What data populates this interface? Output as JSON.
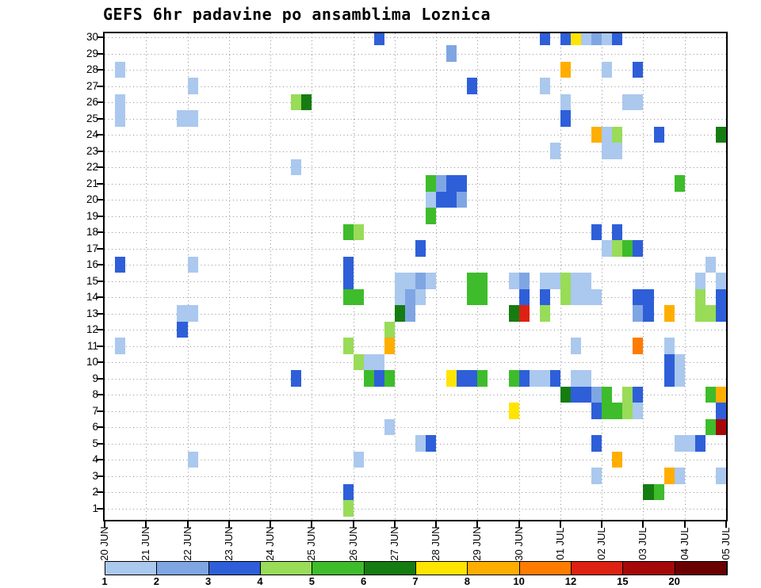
{
  "title": "GEFS 6hr padavine po ansamblima Loznica",
  "chart_data": {
    "type": "heatmap",
    "title": "GEFS 6hr padavine po ansamblima Loznica",
    "x_tick_labels": [
      "20 JUN",
      "21 JUN",
      "22 JUN",
      "23 JUN",
      "24 JUN",
      "25 JUN",
      "26 JUN",
      "27 JUN",
      "28 JUN",
      "29 JUN",
      "30 JUN",
      "01 JUL",
      "02 JUL",
      "03 JUL",
      "04 JUL",
      "05 JUL"
    ],
    "y_tick_labels": [
      "30",
      "29",
      "28",
      "27",
      "26",
      "25",
      "24",
      "23",
      "22",
      "21",
      "20",
      "19",
      "18",
      "17",
      "16",
      "15",
      "14",
      "13",
      "12",
      "11",
      "10",
      "9",
      "8",
      "7",
      "6",
      "5",
      "4",
      "3",
      "2",
      "1"
    ],
    "slots_per_day": 4,
    "grid": "dotted",
    "colorbar": {
      "labels": [
        "1",
        "2",
        "3",
        "4",
        "5",
        "6",
        "7",
        "8",
        "10",
        "12",
        "15",
        "20"
      ],
      "thresholds": [
        1,
        2,
        3,
        4,
        5,
        6,
        7,
        8,
        10,
        12,
        15,
        20
      ],
      "colors": [
        "#abc8ee",
        "#7fa6e3",
        "#2e5fd9",
        "#98dc58",
        "#3ebc2b",
        "#157c12",
        "#ffe400",
        "#ffae00",
        "#ff7c00",
        "#dd2112",
        "#a50808",
        "#6b0000"
      ]
    },
    "cell_format": [
      "member",
      "day_index",
      "slot_6hr",
      "value_mm"
    ],
    "cells": [
      [
        30,
        6,
        2,
        3.5
      ],
      [
        30,
        10,
        2,
        3.5
      ],
      [
        30,
        11,
        0,
        3.5
      ],
      [
        30,
        11,
        1,
        7.5
      ],
      [
        30,
        11,
        2,
        1.5
      ],
      [
        30,
        11,
        3,
        2.5
      ],
      [
        30,
        12,
        0,
        1.5
      ],
      [
        30,
        12,
        1,
        3.5
      ],
      [
        29,
        8,
        1,
        2.5
      ],
      [
        28,
        0,
        1,
        1.5
      ],
      [
        28,
        11,
        0,
        8.5
      ],
      [
        28,
        12,
        0,
        1.5
      ],
      [
        28,
        12,
        3,
        3.5
      ],
      [
        27,
        2,
        0,
        1.5
      ],
      [
        27,
        8,
        3,
        3.5
      ],
      [
        27,
        10,
        2,
        1.5
      ],
      [
        26,
        0,
        1,
        1.5
      ],
      [
        26,
        4,
        2,
        4.5
      ],
      [
        26,
        4,
        3,
        6.5
      ],
      [
        26,
        11,
        0,
        1.5
      ],
      [
        26,
        12,
        2,
        1.5
      ],
      [
        26,
        12,
        3,
        1.5
      ],
      [
        25,
        0,
        1,
        1.5
      ],
      [
        25,
        1,
        3,
        1.5
      ],
      [
        25,
        2,
        0,
        1.5
      ],
      [
        25,
        11,
        0,
        3.5
      ],
      [
        24,
        11,
        3,
        8.5
      ],
      [
        24,
        12,
        0,
        1.5
      ],
      [
        24,
        12,
        1,
        4.5
      ],
      [
        24,
        13,
        1,
        3.5
      ],
      [
        24,
        14,
        3,
        6.5
      ],
      [
        23,
        10,
        3,
        1.5
      ],
      [
        23,
        12,
        0,
        1.5
      ],
      [
        23,
        12,
        1,
        1.5
      ],
      [
        22,
        4,
        2,
        1.5
      ],
      [
        21,
        7,
        3,
        5.5
      ],
      [
        21,
        8,
        0,
        2.5
      ],
      [
        21,
        8,
        1,
        3.5
      ],
      [
        21,
        8,
        2,
        3.5
      ],
      [
        21,
        13,
        3,
        5.5
      ],
      [
        20,
        7,
        3,
        1.5
      ],
      [
        20,
        8,
        0,
        3.5
      ],
      [
        20,
        8,
        1,
        3.5
      ],
      [
        20,
        8,
        2,
        2.5
      ],
      [
        19,
        7,
        3,
        5.5
      ],
      [
        18,
        5,
        3,
        5.5
      ],
      [
        18,
        6,
        0,
        4.5
      ],
      [
        18,
        11,
        3,
        3.5
      ],
      [
        18,
        12,
        1,
        3.5
      ],
      [
        17,
        7,
        2,
        3.5
      ],
      [
        17,
        12,
        0,
        1.5
      ],
      [
        17,
        12,
        1,
        4.5
      ],
      [
        17,
        12,
        2,
        5.5
      ],
      [
        17,
        12,
        3,
        3.5
      ],
      [
        16,
        0,
        1,
        3.5
      ],
      [
        16,
        2,
        0,
        1.5
      ],
      [
        16,
        5,
        3,
        3.5
      ],
      [
        16,
        14,
        2,
        1.5
      ],
      [
        15,
        5,
        3,
        3.5
      ],
      [
        15,
        7,
        0,
        1.5
      ],
      [
        15,
        7,
        1,
        1.5
      ],
      [
        15,
        7,
        2,
        2.5
      ],
      [
        15,
        7,
        3,
        1.5
      ],
      [
        15,
        8,
        3,
        5.5
      ],
      [
        15,
        9,
        0,
        5.5
      ],
      [
        15,
        9,
        3,
        1.5
      ],
      [
        15,
        10,
        0,
        2.5
      ],
      [
        15,
        10,
        2,
        1.5
      ],
      [
        15,
        10,
        3,
        1.5
      ],
      [
        15,
        11,
        0,
        4.5
      ],
      [
        15,
        11,
        1,
        1.5
      ],
      [
        15,
        11,
        2,
        1.5
      ],
      [
        15,
        14,
        1,
        1.5
      ],
      [
        15,
        14,
        3,
        1.5
      ],
      [
        14,
        5,
        3,
        5.5
      ],
      [
        14,
        6,
        0,
        5.5
      ],
      [
        14,
        7,
        0,
        1.5
      ],
      [
        14,
        7,
        1,
        2.5
      ],
      [
        14,
        7,
        2,
        1.5
      ],
      [
        14,
        8,
        3,
        5.5
      ],
      [
        14,
        9,
        0,
        5.5
      ],
      [
        14,
        10,
        0,
        3.5
      ],
      [
        14,
        10,
        2,
        3.5
      ],
      [
        14,
        11,
        0,
        4.5
      ],
      [
        14,
        11,
        1,
        1.5
      ],
      [
        14,
        11,
        2,
        1.5
      ],
      [
        14,
        11,
        3,
        1.5
      ],
      [
        14,
        12,
        3,
        3.5
      ],
      [
        14,
        13,
        0,
        3.5
      ],
      [
        14,
        14,
        1,
        4.5
      ],
      [
        14,
        14,
        3,
        3.5
      ],
      [
        13,
        1,
        3,
        1.5
      ],
      [
        13,
        2,
        0,
        1.5
      ],
      [
        13,
        7,
        0,
        6.5
      ],
      [
        13,
        7,
        1,
        2.5
      ],
      [
        13,
        9,
        3,
        6.5
      ],
      [
        13,
        10,
        0,
        13
      ],
      [
        13,
        10,
        2,
        4.5
      ],
      [
        13,
        12,
        3,
        2.5
      ],
      [
        13,
        13,
        0,
        3.5
      ],
      [
        13,
        13,
        2,
        8.5
      ],
      [
        13,
        14,
        1,
        4.5
      ],
      [
        13,
        14,
        2,
        4.5
      ],
      [
        13,
        14,
        3,
        3.5
      ],
      [
        12,
        1,
        3,
        3.5
      ],
      [
        12,
        6,
        3,
        4.5
      ],
      [
        11,
        0,
        1,
        1.5
      ],
      [
        11,
        5,
        3,
        4.5
      ],
      [
        11,
        6,
        3,
        8.5
      ],
      [
        11,
        11,
        1,
        1.5
      ],
      [
        11,
        12,
        3,
        10.5
      ],
      [
        11,
        13,
        2,
        1.5
      ],
      [
        10,
        6,
        0,
        4.5
      ],
      [
        10,
        6,
        1,
        1.5
      ],
      [
        10,
        6,
        2,
        1.5
      ],
      [
        10,
        13,
        2,
        3.5
      ],
      [
        10,
        13,
        3,
        1.5
      ],
      [
        9,
        4,
        2,
        3.5
      ],
      [
        9,
        6,
        1,
        5.5
      ],
      [
        9,
        6,
        2,
        3.5
      ],
      [
        9,
        6,
        3,
        5.5
      ],
      [
        9,
        8,
        1,
        7.5
      ],
      [
        9,
        8,
        2,
        3.5
      ],
      [
        9,
        8,
        3,
        3.5
      ],
      [
        9,
        9,
        0,
        5.5
      ],
      [
        9,
        9,
        3,
        5.5
      ],
      [
        9,
        10,
        0,
        3.5
      ],
      [
        9,
        10,
        1,
        1.5
      ],
      [
        9,
        10,
        2,
        1.5
      ],
      [
        9,
        10,
        3,
        3.5
      ],
      [
        9,
        11,
        1,
        1.5
      ],
      [
        9,
        11,
        2,
        1.5
      ],
      [
        9,
        13,
        2,
        3.5
      ],
      [
        9,
        13,
        3,
        1.5
      ],
      [
        8,
        11,
        0,
        6.5
      ],
      [
        8,
        11,
        1,
        3.5
      ],
      [
        8,
        11,
        2,
        3.5
      ],
      [
        8,
        11,
        3,
        2.5
      ],
      [
        8,
        12,
        0,
        5.5
      ],
      [
        8,
        12,
        2,
        4.5
      ],
      [
        8,
        12,
        3,
        3.5
      ],
      [
        8,
        14,
        2,
        5.5
      ],
      [
        8,
        14,
        3,
        8.5
      ],
      [
        7,
        9,
        3,
        7.5
      ],
      [
        7,
        11,
        3,
        3.5
      ],
      [
        7,
        12,
        0,
        5.5
      ],
      [
        7,
        12,
        1,
        5.5
      ],
      [
        7,
        12,
        2,
        4.5
      ],
      [
        7,
        12,
        3,
        1.5
      ],
      [
        7,
        14,
        3,
        3.5
      ],
      [
        6,
        6,
        3,
        1.5
      ],
      [
        6,
        14,
        2,
        5.5
      ],
      [
        6,
        14,
        3,
        16
      ],
      [
        5,
        7,
        2,
        1.5
      ],
      [
        5,
        7,
        3,
        3.5
      ],
      [
        5,
        11,
        3,
        3.5
      ],
      [
        5,
        13,
        3,
        1.5
      ],
      [
        5,
        14,
        0,
        1.5
      ],
      [
        5,
        14,
        1,
        3.5
      ],
      [
        4,
        2,
        0,
        1.5
      ],
      [
        4,
        6,
        0,
        1.5
      ],
      [
        4,
        12,
        1,
        8.5
      ],
      [
        3,
        11,
        3,
        1.5
      ],
      [
        3,
        13,
        2,
        8.5
      ],
      [
        3,
        13,
        3,
        1.5
      ],
      [
        3,
        14,
        3,
        1.5
      ],
      [
        2,
        5,
        3,
        3.5
      ],
      [
        2,
        13,
        0,
        6.5
      ],
      [
        2,
        13,
        1,
        5.5
      ],
      [
        1,
        5,
        3,
        4.5
      ]
    ]
  }
}
